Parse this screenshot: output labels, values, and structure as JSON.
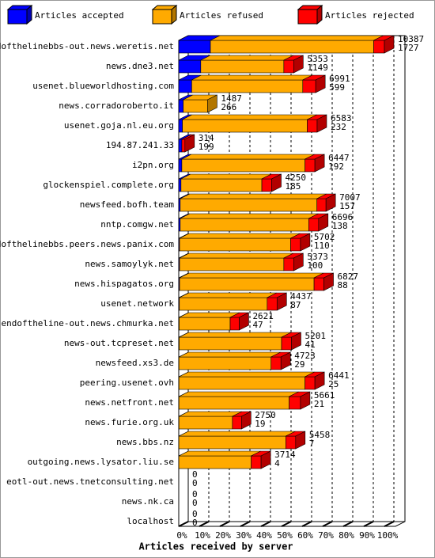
{
  "chart_data": {
    "type": "bar",
    "orientation": "horizontal",
    "stacked": true,
    "three_d": true,
    "x_label": "Articles received by server",
    "categories": [
      "endofthelinebbs-out.news.weretis.net",
      "news.dne3.net",
      "usenet.blueworldhosting.com",
      "news.corradoroberto.it",
      "usenet.goja.nl.eu.org",
      "194.87.241.33",
      "i2pn.org",
      "glockenspiel.complete.org",
      "newsfeed.bofh.team",
      "nntp.comgw.net",
      "endofthelinebbs.peers.news.panix.com",
      "news.samoylyk.net",
      "news.hispagatos.org",
      "usenet.network",
      "endoftheline-out.news.chmurka.net",
      "news-out.tcpreset.net",
      "newsfeed.xs3.de",
      "peering.usenet.ovh",
      "news.netfront.net",
      "news.furie.org.uk",
      "news.bbs.nz",
      "outgoing.news.lysator.liu.se",
      "eotl-out.news.tnetconsulting.net",
      "news.nk.ca",
      "localhost"
    ],
    "series": [
      {
        "name": "Articles accepted",
        "color": "#0000ff",
        "values": [
          15.4,
          10.7,
          6.3,
          2.2,
          1.8,
          1.5,
          1.5,
          1.1,
          0.7,
          0.7,
          0.4,
          0.4,
          0.4,
          0.3,
          0.2,
          0.2,
          0.1,
          0.1,
          0.1,
          0.1,
          0.05,
          0.04,
          0,
          0,
          0
        ]
      },
      {
        "name": "Articles refused",
        "color": "#ffaa00",
        "values": [
          79.4,
          40.4,
          54,
          11.8,
          60.7,
          0,
          59.9,
          39.3,
          66.5,
          62.5,
          54,
          50.7,
          65.4,
          42.7,
          24.8,
          49.8,
          44.8,
          61.3,
          53.6,
          26,
          52,
          35.2,
          0,
          0,
          0
        ]
      },
      {
        "name": "Articles rejected",
        "color": "#ff0000",
        "values": [
          5.2,
          4.8,
          6.3,
          0,
          4.8,
          1.5,
          4.8,
          4.8,
          4.4,
          4.8,
          4.8,
          4.8,
          4.8,
          4.8,
          4.4,
          4.8,
          4.8,
          4.8,
          5.5,
          4.4,
          4.8,
          4.8,
          0,
          0,
          0
        ]
      }
    ],
    "offered": [
      10387,
      5353,
      6991,
      1487,
      6583,
      314,
      6447,
      4250,
      7007,
      6696,
      5702,
      5373,
      6827,
      4437,
      2621,
      5201,
      4723,
      6441,
      5661,
      2750,
      5458,
      3714,
      0,
      0,
      0
    ],
    "accepted": [
      1727,
      1149,
      599,
      266,
      232,
      199,
      192,
      185,
      157,
      138,
      110,
      100,
      88,
      87,
      47,
      41,
      29,
      25,
      21,
      19,
      7,
      4,
      0,
      0,
      0
    ],
    "xlim": [
      0,
      100
    ],
    "xticks": [
      {
        "value": 0,
        "label": "0%"
      },
      {
        "value": 10,
        "label": "10%"
      },
      {
        "value": 20,
        "label": "20%"
      },
      {
        "value": 30,
        "label": "30%"
      },
      {
        "value": 40,
        "label": "40%"
      },
      {
        "value": 50,
        "label": "50%"
      },
      {
        "value": 60,
        "label": "60%"
      },
      {
        "value": 70,
        "label": "70%"
      },
      {
        "value": 80,
        "label": "80%"
      },
      {
        "value": 90,
        "label": "90%"
      },
      {
        "value": 100,
        "label": "100%"
      }
    ],
    "grid": true
  }
}
